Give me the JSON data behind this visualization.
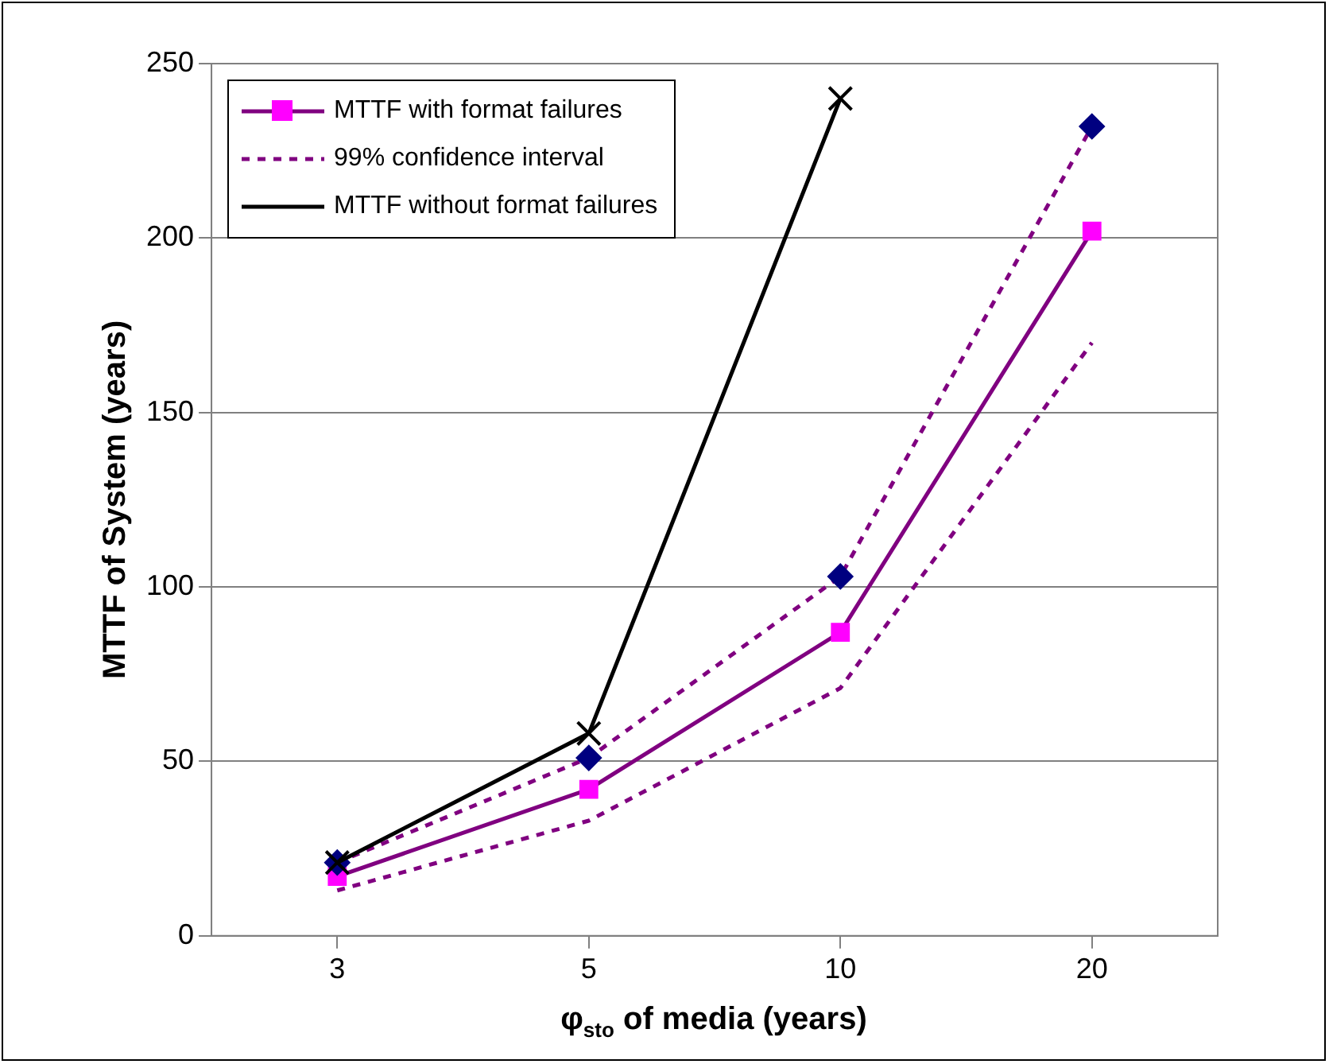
{
  "chart_data": {
    "type": "line",
    "xlabel": "φ$_{sto}$ of media (years)",
    "ylabel": "MTTF of System (years)",
    "categories": [
      "3",
      "5",
      "10",
      "20"
    ],
    "series": [
      {
        "name": "MTTF with format failures",
        "color": "#800080",
        "colors": [
          "#ff00ff",
          "#ff00ff",
          "#ff00ff",
          "#ff00ff"
        ],
        "marker": "square",
        "line_style": "solid",
        "values": [
          17,
          42,
          87,
          202
        ]
      },
      {
        "name": "99%  confidence interval",
        "color": "#800080",
        "colors": [
          "#000080",
          "#000080",
          "#000080",
          "#000080"
        ],
        "marker": "diamond",
        "line_style": "dotted",
        "values": [
          21,
          51,
          103,
          232
        ]
      },
      {
        "color": "#800080",
        "marker": "none",
        "line_style": "dotted",
        "values": [
          13,
          33,
          71,
          170
        ]
      },
      {
        "name": "MTTF without format failures",
        "color": "#000000",
        "marker": "cross",
        "line_style": "solid",
        "values": [
          21,
          58,
          240,
          null
        ]
      }
    ],
    "ylim": [
      0,
      250
    ],
    "yticks": [
      0,
      50,
      100,
      150,
      200,
      250
    ],
    "grid": "y",
    "legend": "top left"
  }
}
